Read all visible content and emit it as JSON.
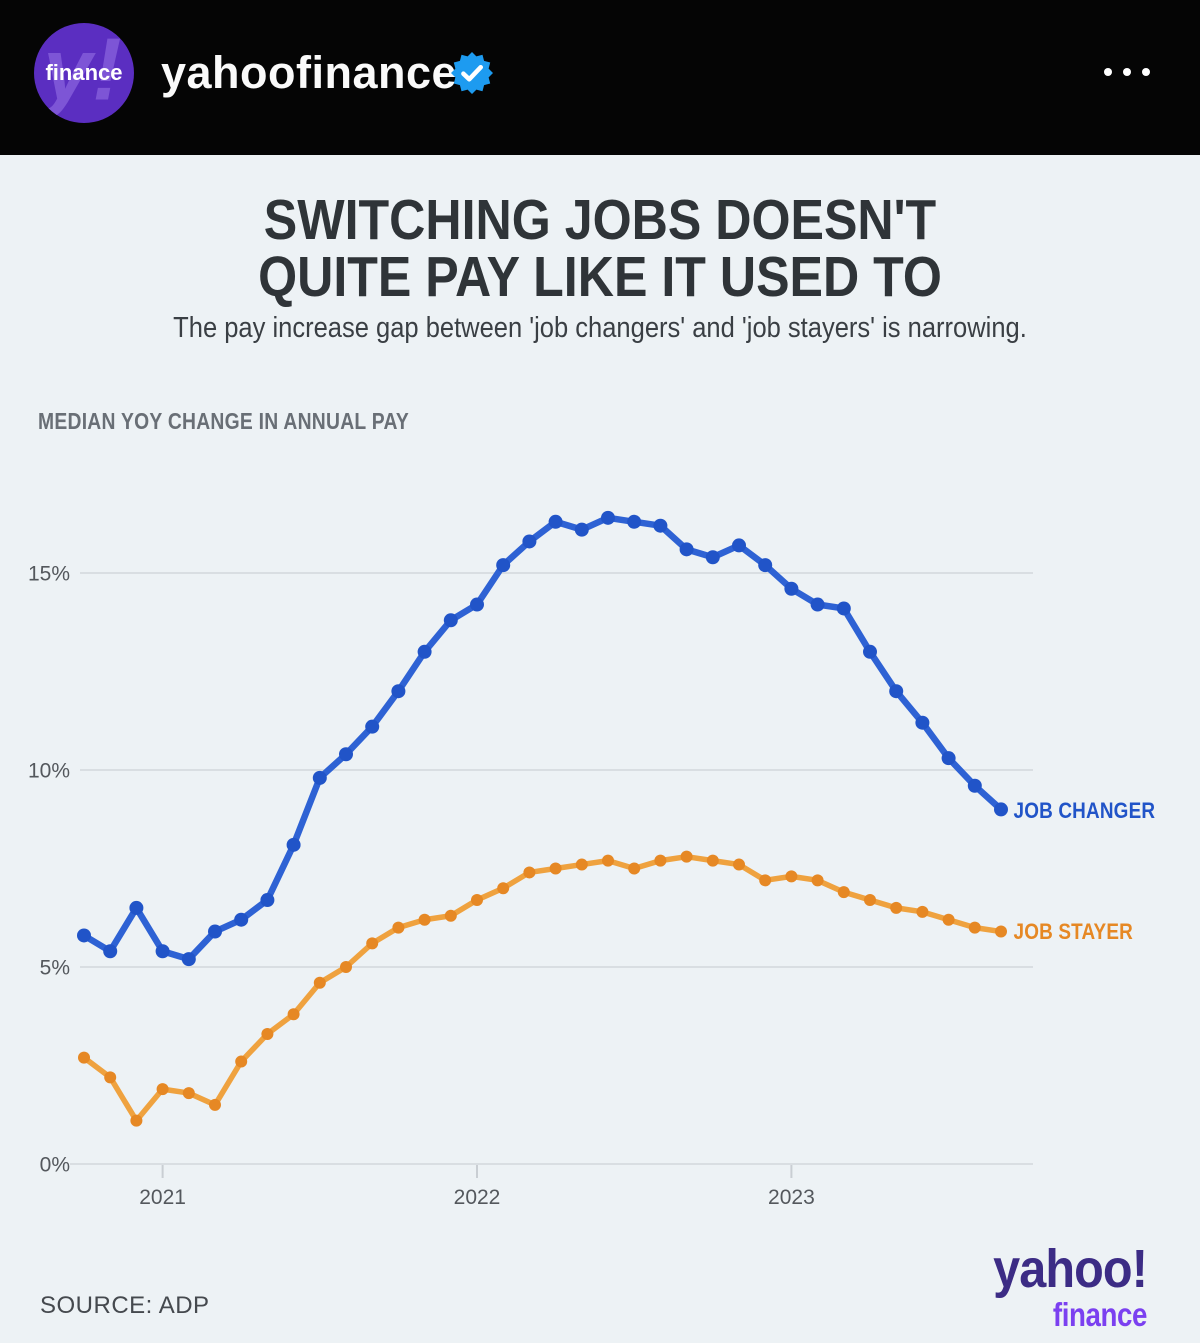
{
  "header": {
    "username": "yahoofinance",
    "avatar": {
      "watermark": "y!",
      "label": "finance"
    }
  },
  "post": {
    "title_line1": "SWITCHING JOBS DOESN'T",
    "title_line2": "QUITE PAY LIKE IT USED TO",
    "subtitle": "The pay increase gap between 'job changers' and 'job stayers' is narrowing.",
    "chart_heading": "MEDIAN YOY CHANGE IN ANNUAL PAY",
    "source": "SOURCE: ADP",
    "logo": {
      "primary": "yahoo!",
      "secondary": "finance"
    }
  },
  "colors": {
    "background": "#edf2f5",
    "header_bar": "#050505",
    "verified_badge": "#1d9bf0",
    "avatar_purple": "#5b2ec1",
    "title_text": "#2f3438",
    "logo_primary": "#3c2c85",
    "logo_secondary": "#7b40f0"
  },
  "chart_data": {
    "type": "line",
    "title": "MEDIAN YOY CHANGE IN ANNUAL PAY",
    "unit": "%",
    "grid": true,
    "legend_position": "right-of-line-end",
    "legend_dash": "-",
    "x": [
      "Oct 2020",
      "Nov 2020",
      "Dec 2020",
      "Jan 2021",
      "Feb 2021",
      "Mar 2021",
      "Apr 2021",
      "May 2021",
      "Jun 2021",
      "Jul 2021",
      "Aug 2021",
      "Sep 2021",
      "Oct 2021",
      "Nov 2021",
      "Dec 2021",
      "Jan 2022",
      "Feb 2022",
      "Mar 2022",
      "Apr 2022",
      "May 2022",
      "Jun 2022",
      "Jul 2022",
      "Aug 2022",
      "Sep 2022",
      "Oct 2022",
      "Nov 2022",
      "Dec 2022",
      "Jan 2023",
      "Feb 2023",
      "Mar 2023",
      "Apr 2023",
      "May 2023",
      "Jun 2023",
      "Jul 2023",
      "Aug 2023",
      "Sep 2023"
    ],
    "x_axis": {
      "tick_labels": [
        "2021",
        "2022",
        "2023"
      ],
      "tick_month_index": [
        3,
        15,
        27
      ]
    },
    "y_axis": {
      "tick_labels": [
        "0%",
        "5%",
        "10%",
        "15%"
      ],
      "tick_values": [
        0,
        5,
        10,
        15
      ],
      "range": [
        0,
        17.5
      ]
    },
    "series": [
      {
        "name": "JOB CHANGER",
        "color": "#2e62d4",
        "marker_color": "#2154c8",
        "values": [
          5.8,
          5.4,
          6.5,
          5.4,
          5.2,
          5.9,
          6.2,
          6.7,
          8.1,
          9.8,
          10.4,
          11.1,
          12.0,
          13.0,
          13.8,
          14.2,
          15.2,
          15.8,
          16.3,
          16.1,
          16.4,
          16.3,
          16.2,
          15.6,
          15.4,
          15.7,
          15.2,
          14.6,
          14.2,
          14.1,
          13.0,
          12.0,
          11.2,
          10.3,
          9.6,
          9.0
        ]
      },
      {
        "name": "JOB STAYER",
        "color": "#efa23f",
        "marker_color": "#e68824",
        "values": [
          2.7,
          2.2,
          1.1,
          1.9,
          1.8,
          1.5,
          2.6,
          3.3,
          3.8,
          4.6,
          5.0,
          5.6,
          6.0,
          6.2,
          6.3,
          6.7,
          7.0,
          7.4,
          7.5,
          7.6,
          7.7,
          7.5,
          7.7,
          7.8,
          7.7,
          7.6,
          7.2,
          7.3,
          7.2,
          6.9,
          6.7,
          6.5,
          6.4,
          6.2,
          6.0,
          5.9
        ]
      }
    ]
  }
}
